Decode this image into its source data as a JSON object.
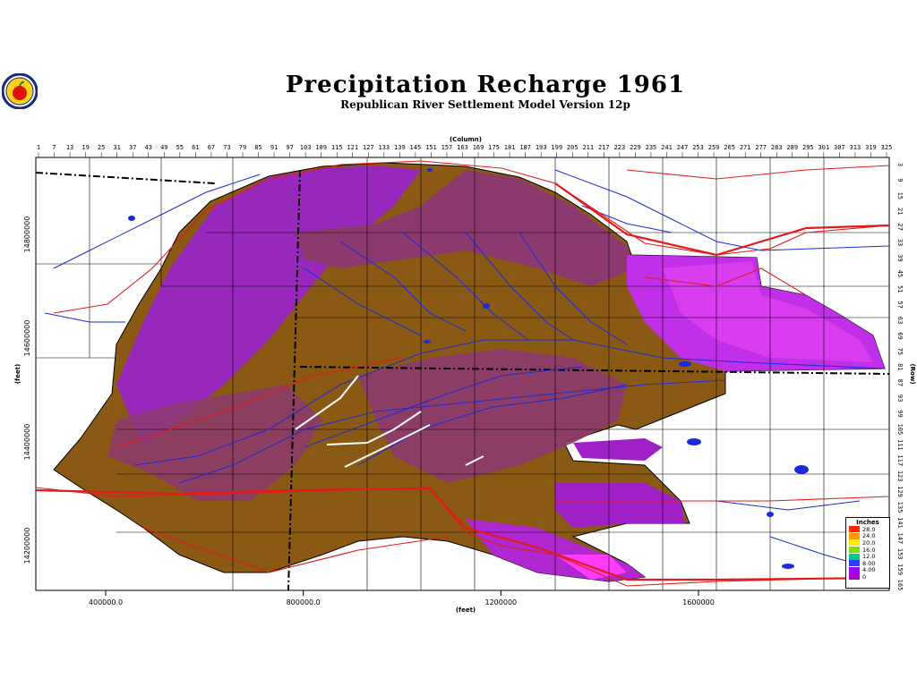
{
  "map": {
    "title": "Precipitation Recharge 1961",
    "subtitle": "Republican River Settlement Model Version 12p",
    "column_axis_label": "(Column)",
    "row_axis_label": "(Row)",
    "x_axis_label": "(feet)",
    "y_axis_label": "(feet)",
    "column_ticks": [
      "1",
      "7",
      "13",
      "19",
      "25",
      "31",
      "37",
      "43",
      "49",
      "55",
      "61",
      "67",
      "73",
      "79",
      "85",
      "91",
      "97",
      "103",
      "109",
      "115",
      "121",
      "127",
      "133",
      "139",
      "145",
      "151",
      "157",
      "163",
      "169",
      "175",
      "181",
      "187",
      "193",
      "199",
      "205",
      "211",
      "217",
      "223",
      "229",
      "235",
      "241",
      "247",
      "253",
      "259",
      "265",
      "271",
      "277",
      "283",
      "289",
      "295",
      "301",
      "307",
      "313",
      "319",
      "325"
    ],
    "row_ticks": [
      "3",
      "9",
      "15",
      "21",
      "27",
      "33",
      "39",
      "45",
      "51",
      "57",
      "63",
      "69",
      "75",
      "81",
      "87",
      "93",
      "99",
      "105",
      "111",
      "117",
      "123",
      "129",
      "135",
      "141",
      "147",
      "153",
      "159",
      "165"
    ],
    "x_ticks": [
      {
        "label": "400000.0",
        "value": 400000
      },
      {
        "label": "800000.0",
        "value": 800000
      },
      {
        "label": "1200000",
        "value": 1200000
      },
      {
        "label": "1600000",
        "value": 1600000
      }
    ],
    "y_ticks": [
      {
        "label": "14800000",
        "value": 14800000
      },
      {
        "label": "14600000",
        "value": 14600000
      },
      {
        "label": "14400000",
        "value": 14400000
      },
      {
        "label": "14200000",
        "value": 14200000
      }
    ],
    "legend": {
      "title": "Inches",
      "items": [
        {
          "label": "28.0",
          "color": "#ff2a00"
        },
        {
          "label": "24.0",
          "color": "#ff9900"
        },
        {
          "label": "20.0",
          "color": "#ffee00"
        },
        {
          "label": "16.0",
          "color": "#7ee000"
        },
        {
          "label": "12.0",
          "color": "#00cc88"
        },
        {
          "label": "8.00",
          "color": "#2a3cff"
        },
        {
          "label": "4.00",
          "color": "#a000ff"
        },
        {
          "label": "0",
          "color": "#b000c8"
        }
      ]
    },
    "colors": {
      "low_recharge": "#8a5a14",
      "mid_recharge": "#8c3a6e",
      "high_recharge": "#9a20d8",
      "peak_recharge": "#e040f0",
      "rivers": "#1a2ad8",
      "roads": "#e41a1a",
      "boundaries": "#000000"
    }
  }
}
